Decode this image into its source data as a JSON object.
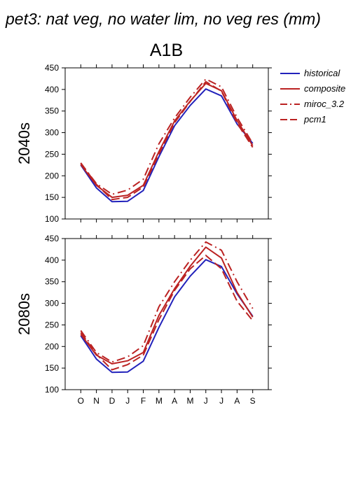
{
  "title": "pet3: nat veg, no water lim, no veg res (mm)",
  "scenario": "A1B",
  "legend": [
    {
      "name": "historical",
      "color": "#2222bb",
      "dash": "solid"
    },
    {
      "name": "composite",
      "color": "#bb2222",
      "dash": "solid"
    },
    {
      "name": "miroc_3.2",
      "color": "#bb2222",
      "dash": "dashdot"
    },
    {
      "name": "pcm1",
      "color": "#bb2222",
      "dash": "dashed"
    }
  ],
  "chart_data": [
    {
      "type": "line",
      "panel": "2040s",
      "ylabel": "2040s",
      "categories": [
        "O",
        "N",
        "D",
        "J",
        "F",
        "M",
        "A",
        "M",
        "J",
        "J",
        "A",
        "S"
      ],
      "ylim": [
        100,
        450
      ],
      "yticks": [
        100,
        150,
        200,
        250,
        300,
        350,
        400,
        450
      ],
      "series": [
        {
          "name": "historical",
          "values": [
            225,
            172,
            140,
            141,
            166,
            244,
            316,
            363,
            401,
            385,
            320,
            275
          ]
        },
        {
          "name": "composite",
          "values": [
            226,
            178,
            150,
            155,
            178,
            256,
            327,
            373,
            414,
            397,
            328,
            270
          ]
        },
        {
          "name": "miroc_3.2",
          "values": [
            229,
            182,
            157,
            167,
            192,
            274,
            334,
            382,
            424,
            406,
            335,
            275
          ]
        },
        {
          "name": "pcm1",
          "values": [
            230,
            180,
            145,
            150,
            174,
            250,
            323,
            372,
            418,
            396,
            322,
            266
          ]
        }
      ]
    },
    {
      "type": "line",
      "panel": "2080s",
      "ylabel": "2080s",
      "categories": [
        "O",
        "N",
        "D",
        "J",
        "F",
        "M",
        "A",
        "M",
        "J",
        "J",
        "A",
        "S"
      ],
      "ylim": [
        100,
        450
      ],
      "yticks": [
        100,
        150,
        200,
        250,
        300,
        350,
        400,
        450
      ],
      "series": [
        {
          "name": "historical",
          "values": [
            225,
            171,
            140,
            141,
            166,
            244,
            315,
            363,
            401,
            385,
            322,
            270
          ]
        },
        {
          "name": "composite",
          "values": [
            228,
            180,
            160,
            167,
            186,
            272,
            334,
            386,
            430,
            405,
            325,
            268
          ]
        },
        {
          "name": "miroc_3.2",
          "values": [
            237,
            186,
            164,
            176,
            202,
            292,
            350,
            400,
            442,
            423,
            350,
            288
          ]
        },
        {
          "name": "pcm1",
          "values": [
            232,
            182,
            146,
            158,
            180,
            262,
            330,
            380,
            411,
            380,
            305,
            260
          ]
        }
      ]
    }
  ]
}
